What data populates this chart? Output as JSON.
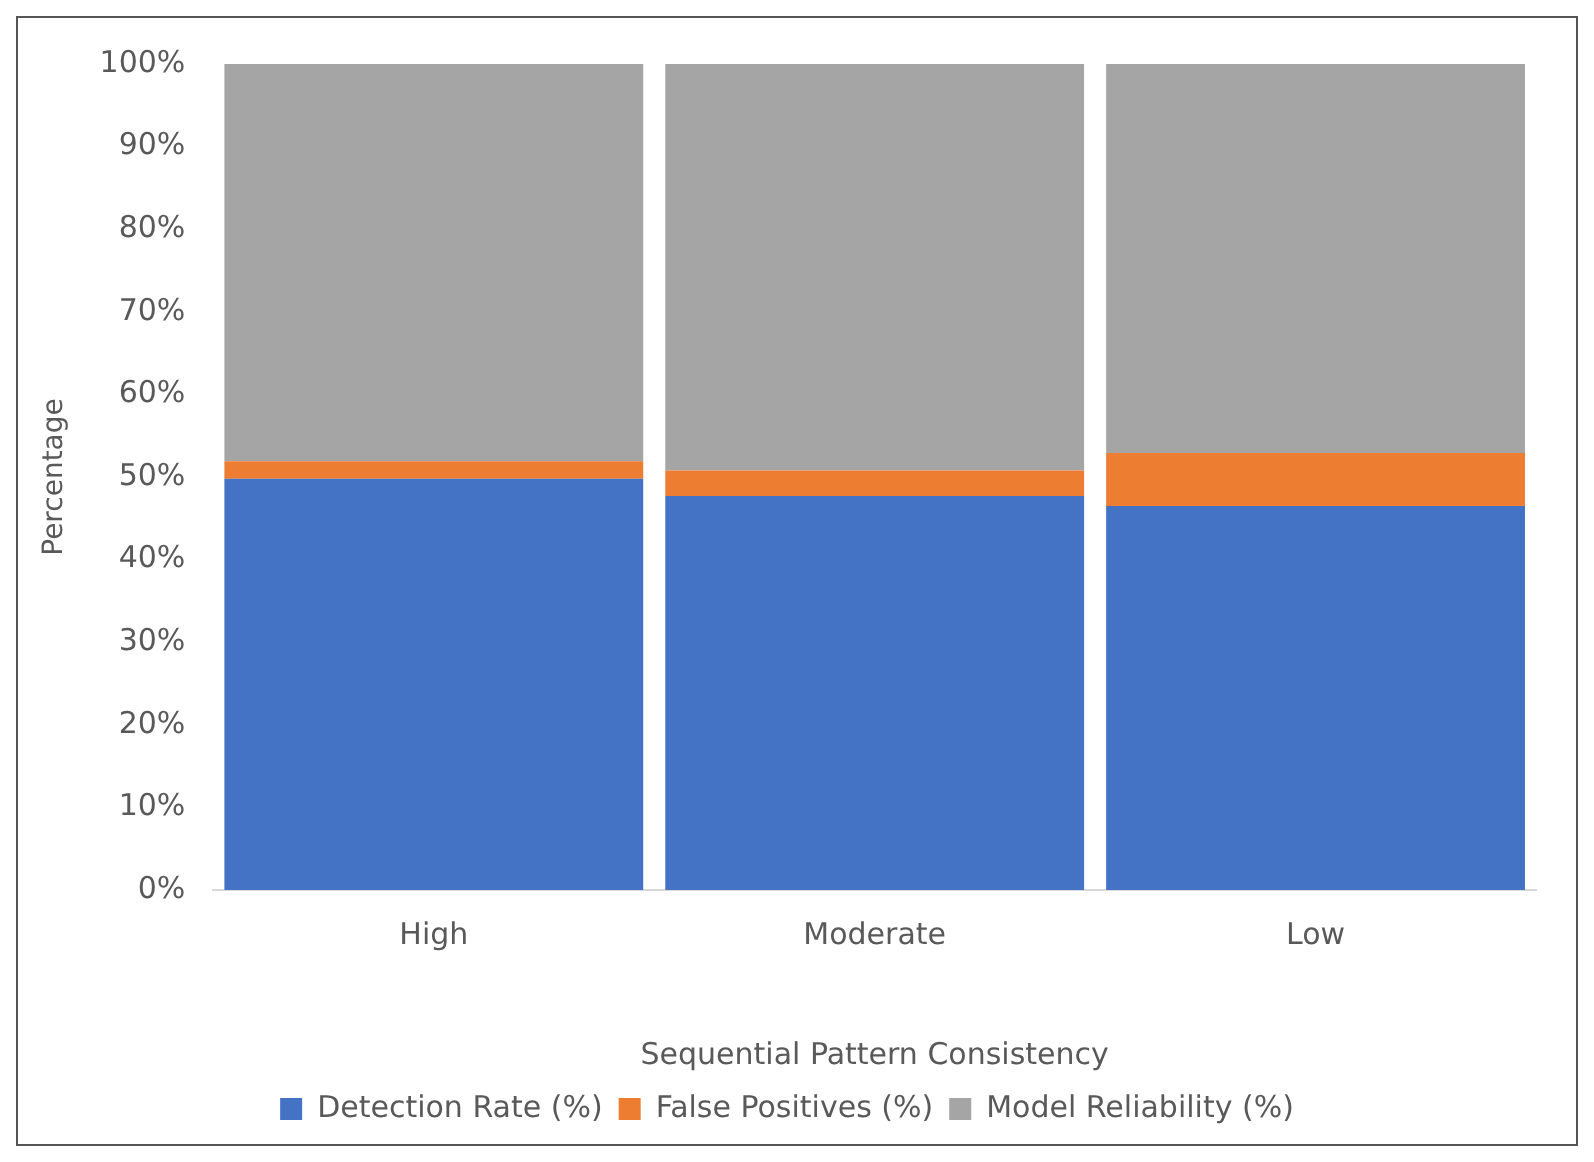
{
  "chart_data": {
    "type": "bar",
    "stacked": true,
    "xlabel": "Sequential Pattern Consistency",
    "ylabel": "Percentage",
    "categories": [
      "High",
      "Moderate",
      "Low"
    ],
    "series": [
      {
        "name": "Detection Rate (%)",
        "color": "#4472c4",
        "values": [
          49.8,
          47.7,
          46.5
        ]
      },
      {
        "name": "False Positives (%)",
        "color": "#ed7d31",
        "values": [
          2.1,
          3.1,
          6.4
        ]
      },
      {
        "name": "Model Reliability (%)",
        "color": "#a5a5a5",
        "values": [
          48.1,
          49.2,
          47.1
        ]
      }
    ],
    "ylim": [
      0,
      100
    ],
    "yticks": [
      {
        "value": 0,
        "label": "0%"
      },
      {
        "value": 10,
        "label": "10%"
      },
      {
        "value": 20,
        "label": "20%"
      },
      {
        "value": 30,
        "label": "30%"
      },
      {
        "value": 40,
        "label": "40%"
      },
      {
        "value": 50,
        "label": "50%"
      },
      {
        "value": 60,
        "label": "60%"
      },
      {
        "value": 70,
        "label": "70%"
      },
      {
        "value": 80,
        "label": "80%"
      },
      {
        "value": 90,
        "label": "90%"
      },
      {
        "value": 100,
        "label": "100%"
      }
    ],
    "grid": false,
    "legend": "bottom"
  }
}
